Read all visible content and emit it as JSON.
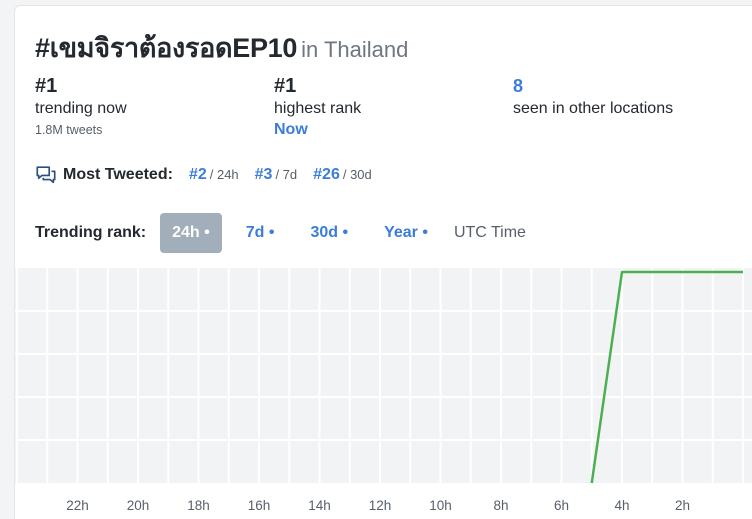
{
  "header": {
    "title": "#เขมจิราต้องรอดEP10",
    "location": "in Thailand"
  },
  "stats": {
    "trending": {
      "value": "#1",
      "label": "trending now",
      "sub": "1.8M tweets"
    },
    "highest": {
      "value": "#1",
      "label": "highest rank",
      "when": "Now"
    },
    "other": {
      "value": "8",
      "label": "seen in other locations"
    }
  },
  "most_tweeted": {
    "label": "Most Tweeted:",
    "icon": "chat-bubbles-icon",
    "items": [
      {
        "rank": "#2",
        "period": "/ 24h"
      },
      {
        "rank": "#3",
        "period": "/ 7d"
      },
      {
        "rank": "#26",
        "period": "/ 30d"
      }
    ]
  },
  "trending_rank": {
    "label": "Trending rank:",
    "tabs": [
      {
        "label": "24h •",
        "active": true
      },
      {
        "label": "7d •",
        "active": false
      },
      {
        "label": "30d •",
        "active": false
      },
      {
        "label": "Year •",
        "active": false
      }
    ],
    "timezone": "UTC Time"
  },
  "colors": {
    "line": "#4caf50",
    "link": "#3b7dd8",
    "active_tab": "#a3aebb",
    "grid_bg": "#f2f3f5"
  },
  "chart_data": {
    "type": "line",
    "x_tick_labels": [
      "22h",
      "20h",
      "18h",
      "16h",
      "14h",
      "12h",
      "10h",
      "8h",
      "6h",
      "4h",
      "2h"
    ],
    "x_hours_ago": [
      22,
      20,
      18,
      16,
      14,
      12,
      10,
      8,
      6,
      4,
      2
    ],
    "x_range_hours_ago": [
      24,
      0
    ],
    "series": [
      {
        "x_hours_ago": [
          5,
          4,
          0
        ],
        "rank": [
          50,
          1,
          1
        ]
      }
    ],
    "grid": true
  }
}
